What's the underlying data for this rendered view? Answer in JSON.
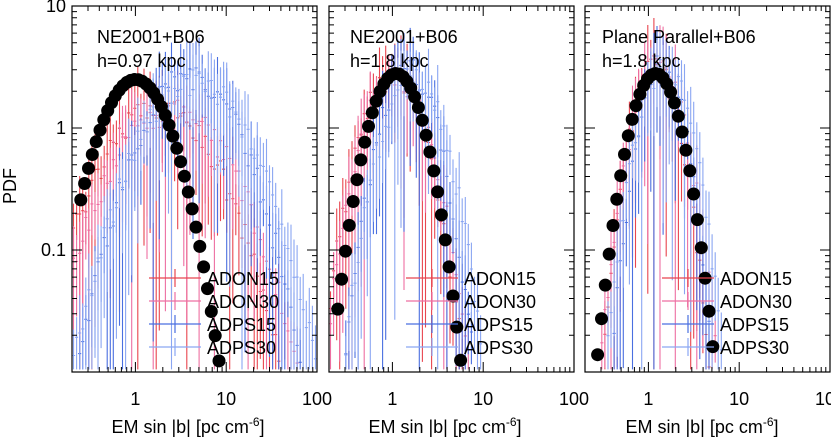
{
  "figure": {
    "ylabel": "PDF",
    "xlabel_main": "EM sin |b| [pc cm",
    "xlabel_sup": "-6",
    "xlabel_tail": "]"
  },
  "colors": {
    "ADON15": "#e8454f",
    "ADON30": "#ee6fa2",
    "ADPS15": "#4a6fe0",
    "ADPS30": "#8aa6f2",
    "data": "#000000"
  },
  "chart_data": [
    {
      "type": "scatter",
      "title_line1": "NE2001+B06",
      "title_line2": "h=0.97 kpc",
      "xscale": "log",
      "yscale": "log",
      "xlim": [
        0.2,
        100
      ],
      "ylim": [
        0.01,
        10
      ],
      "xticks": [
        {
          "v": 1,
          "label": "1"
        },
        {
          "v": 10,
          "label": "10"
        },
        {
          "v": 100,
          "label": "100"
        }
      ],
      "yticks": [
        {
          "v": 0.1,
          "label": "0.1"
        },
        {
          "v": 1,
          "label": "1"
        },
        {
          "v": 10,
          "label": "10"
        }
      ],
      "legend": [
        "ADON15",
        "ADON30",
        "ADPS15",
        "ADPS30"
      ],
      "legend_position": "bottom-right",
      "observed": {
        "name": "data",
        "mu": 1.0,
        "sigma": 0.72,
        "peak": 2.5
      },
      "series": [
        {
          "name": "ADON15",
          "mu": 1.8,
          "sigma": 1.1,
          "peak": 1.5
        },
        {
          "name": "ADON30",
          "mu": 2.5,
          "sigma": 1.15,
          "peak": 1.4
        },
        {
          "name": "ADPS15",
          "mu": 4.0,
          "sigma": 0.95,
          "peak": 2.7
        },
        {
          "name": "ADPS30",
          "mu": 4.5,
          "sigma": 1.05,
          "peak": 2.4
        }
      ]
    },
    {
      "type": "scatter",
      "title_line1": "NE2001+B06",
      "title_line2": "h=1.8 kpc",
      "xscale": "log",
      "yscale": "log",
      "xlim": [
        0.2,
        100
      ],
      "ylim": [
        0.01,
        10
      ],
      "xticks": [
        {
          "v": 1,
          "label": "1"
        },
        {
          "v": 10,
          "label": "10"
        },
        {
          "v": 100,
          "label": "100"
        }
      ],
      "yticks": [
        {
          "v": 0.1,
          "label": ""
        },
        {
          "v": 1,
          "label": ""
        },
        {
          "v": 10,
          "label": ""
        }
      ],
      "legend": [
        "ADON15",
        "ADON30",
        "ADPS15",
        "ADPS30"
      ],
      "legend_position": "bottom-right",
      "observed": {
        "name": "data",
        "mu": 1.1,
        "sigma": 0.55,
        "peak": 2.8
      },
      "series": [
        {
          "name": "ADON15",
          "mu": 1.0,
          "sigma": 0.6,
          "peak": 2.9
        },
        {
          "name": "ADON30",
          "mu": 1.1,
          "sigma": 0.62,
          "peak": 2.7
        },
        {
          "name": "ADPS15",
          "mu": 1.5,
          "sigma": 0.55,
          "peak": 3.0
        },
        {
          "name": "ADPS30",
          "mu": 1.7,
          "sigma": 0.6,
          "peak": 2.6
        }
      ]
    },
    {
      "type": "scatter",
      "title_line1": "Plane Parallel+B06",
      "title_line2": "h=1.8 kpc",
      "xscale": "log",
      "yscale": "log",
      "xlim": [
        0.2,
        100
      ],
      "ylim": [
        0.01,
        10
      ],
      "xticks": [
        {
          "v": 1,
          "label": "1"
        },
        {
          "v": 10,
          "label": "10"
        },
        {
          "v": 100,
          "label": "100"
        }
      ],
      "yticks": [
        {
          "v": 0.1,
          "label": ""
        },
        {
          "v": 1,
          "label": ""
        },
        {
          "v": 10,
          "label": ""
        }
      ],
      "legend": [
        "ADON15",
        "ADON30",
        "ADPS15",
        "ADPS30"
      ],
      "legend_position": "bottom-right",
      "observed": {
        "name": "data",
        "mu": 1.2,
        "sigma": 0.5,
        "peak": 2.8
      },
      "series": [
        {
          "name": "ADON15",
          "mu": 1.2,
          "sigma": 0.45,
          "peak": 3.2
        },
        {
          "name": "ADON30",
          "mu": 1.3,
          "sigma": 0.5,
          "peak": 3.0
        },
        {
          "name": "ADPS15",
          "mu": 1.4,
          "sigma": 0.42,
          "peak": 3.4
        },
        {
          "name": "ADPS30",
          "mu": 1.5,
          "sigma": 0.5,
          "peak": 3.1
        }
      ]
    }
  ]
}
